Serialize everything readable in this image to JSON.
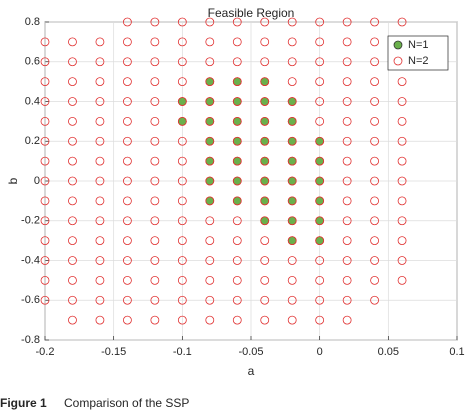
{
  "chart_data": {
    "type": "scatter",
    "title": "Feasible Region",
    "x_label": "a",
    "y_label": "b",
    "xlim": [
      -0.2,
      0.1
    ],
    "xticks": [
      -0.2,
      -0.15,
      -0.1,
      -0.05,
      0,
      0.05,
      0.1
    ],
    "ylim": [
      -0.8,
      0.8
    ],
    "yticks": [
      -0.8,
      -0.6,
      -0.4,
      -0.2,
      0,
      0.2,
      0.4,
      0.6,
      0.8
    ],
    "grid": true,
    "legend": "upper right",
    "series": [
      {
        "name": "N=2",
        "color": "#e03030",
        "marker": "open",
        "x": [
          -0.2,
          -0.2,
          -0.2,
          -0.2,
          -0.2,
          -0.2,
          -0.2,
          -0.2,
          -0.2,
          -0.2,
          -0.2,
          -0.2,
          -0.2,
          -0.2,
          -0.18,
          -0.18,
          -0.18,
          -0.18,
          -0.18,
          -0.18,
          -0.18,
          -0.18,
          -0.18,
          -0.18,
          -0.18,
          -0.18,
          -0.18,
          -0.18,
          -0.18,
          -0.16,
          -0.16,
          -0.16,
          -0.16,
          -0.16,
          -0.16,
          -0.16,
          -0.16,
          -0.16,
          -0.16,
          -0.16,
          -0.16,
          -0.16,
          -0.16,
          -0.16,
          -0.14,
          -0.14,
          -0.14,
          -0.14,
          -0.14,
          -0.14,
          -0.14,
          -0.14,
          -0.14,
          -0.14,
          -0.14,
          -0.14,
          -0.14,
          -0.14,
          -0.14,
          -0.14,
          -0.12,
          -0.12,
          -0.12,
          -0.12,
          -0.12,
          -0.12,
          -0.12,
          -0.12,
          -0.12,
          -0.12,
          -0.12,
          -0.12,
          -0.12,
          -0.12,
          -0.12,
          -0.12,
          -0.1,
          -0.1,
          -0.1,
          -0.1,
          -0.1,
          -0.1,
          -0.1,
          -0.1,
          -0.1,
          -0.1,
          -0.1,
          -0.1,
          -0.1,
          -0.1,
          -0.1,
          -0.1,
          -0.08,
          -0.08,
          -0.08,
          -0.08,
          -0.08,
          -0.08,
          -0.08,
          -0.08,
          -0.08,
          -0.08,
          -0.08,
          -0.08,
          -0.08,
          -0.08,
          -0.08,
          -0.08,
          -0.06,
          -0.06,
          -0.06,
          -0.06,
          -0.06,
          -0.06,
          -0.06,
          -0.06,
          -0.06,
          -0.06,
          -0.06,
          -0.06,
          -0.06,
          -0.06,
          -0.06,
          -0.06,
          -0.04,
          -0.04,
          -0.04,
          -0.04,
          -0.04,
          -0.04,
          -0.04,
          -0.04,
          -0.04,
          -0.04,
          -0.04,
          -0.04,
          -0.04,
          -0.04,
          -0.04,
          -0.04,
          -0.02,
          -0.02,
          -0.02,
          -0.02,
          -0.02,
          -0.02,
          -0.02,
          -0.02,
          -0.02,
          -0.02,
          -0.02,
          -0.02,
          -0.02,
          -0.02,
          -0.02,
          -0.02,
          0,
          0,
          0,
          0,
          0,
          0,
          0,
          0,
          0,
          0,
          0,
          0,
          0,
          0,
          0,
          0,
          0.02,
          0.02,
          0.02,
          0.02,
          0.02,
          0.02,
          0.02,
          0.02,
          0.02,
          0.02,
          0.02,
          0.02,
          0.02,
          0.02,
          0.02,
          0.02,
          0.04,
          0.04,
          0.04,
          0.04,
          0.04,
          0.04,
          0.04,
          0.04,
          0.04,
          0.04,
          0.04,
          0.04,
          0.04,
          0.04,
          0.04,
          0.06,
          0.06,
          0.06,
          0.06,
          0.06,
          0.06,
          0.06,
          0.06,
          0.06,
          0.06,
          0.06,
          0.06,
          0.06,
          0.06
        ],
        "values": [
          0.7,
          0.6,
          0.5,
          0.4,
          0.3,
          0.2,
          0.1,
          0,
          -0.1,
          -0.2,
          -0.3,
          -0.4,
          -0.5,
          -0.6,
          0.7,
          0.6,
          0.5,
          0.4,
          0.3,
          0.2,
          0.1,
          0,
          -0.1,
          -0.2,
          -0.3,
          -0.4,
          -0.5,
          -0.6,
          -0.7,
          0.7,
          0.6,
          0.5,
          0.4,
          0.3,
          0.2,
          0.1,
          0,
          -0.1,
          -0.2,
          -0.3,
          -0.4,
          -0.5,
          -0.6,
          -0.7,
          0.8,
          0.7,
          0.6,
          0.5,
          0.4,
          0.3,
          0.2,
          0.1,
          0,
          -0.1,
          -0.2,
          -0.3,
          -0.4,
          -0.5,
          -0.6,
          -0.7,
          0.8,
          0.7,
          0.6,
          0.5,
          0.4,
          0.3,
          0.2,
          0.1,
          0,
          -0.1,
          -0.2,
          -0.3,
          -0.4,
          -0.5,
          -0.6,
          -0.7,
          0.8,
          0.7,
          0.6,
          0.5,
          0.4,
          0.3,
          0.2,
          0.1,
          0,
          -0.1,
          -0.2,
          -0.3,
          -0.4,
          -0.5,
          -0.6,
          -0.7,
          0.8,
          0.7,
          0.6,
          0.5,
          0.4,
          0.3,
          0.2,
          0.1,
          0,
          -0.1,
          -0.2,
          -0.3,
          -0.4,
          -0.5,
          -0.6,
          -0.7,
          0.8,
          0.7,
          0.6,
          0.5,
          0.4,
          0.3,
          0.2,
          0.1,
          0,
          -0.1,
          -0.2,
          -0.3,
          -0.4,
          -0.5,
          -0.6,
          -0.7,
          0.8,
          0.7,
          0.6,
          0.5,
          0.4,
          0.3,
          0.2,
          0.1,
          0,
          -0.1,
          -0.2,
          -0.3,
          -0.4,
          -0.5,
          -0.6,
          -0.7,
          0.8,
          0.7,
          0.6,
          0.5,
          0.4,
          0.3,
          0.2,
          0.1,
          0,
          -0.1,
          -0.2,
          -0.3,
          -0.4,
          -0.5,
          -0.6,
          -0.7,
          0.8,
          0.7,
          0.6,
          0.5,
          0.4,
          0.3,
          0.2,
          0.1,
          0,
          -0.1,
          -0.2,
          -0.3,
          -0.4,
          -0.5,
          -0.6,
          -0.7,
          0.8,
          0.7,
          0.6,
          0.5,
          0.4,
          0.3,
          0.2,
          0.1,
          0,
          -0.1,
          -0.2,
          -0.3,
          -0.4,
          -0.5,
          -0.6,
          -0.7,
          0.8,
          0.7,
          0.6,
          0.5,
          0.4,
          0.3,
          0.2,
          0.1,
          0,
          -0.1,
          -0.2,
          -0.3,
          -0.4,
          -0.5,
          -0.6,
          0.8,
          0.7,
          0.6,
          0.5,
          0.4,
          0.3,
          0.2,
          0.1,
          0,
          -0.1,
          -0.2,
          -0.3,
          -0.4,
          -0.5
        ]
      },
      {
        "name": "N=1",
        "color": "#6ab04c",
        "marker": "filled",
        "x": [
          -0.1,
          -0.1,
          -0.08,
          -0.08,
          -0.08,
          -0.08,
          -0.08,
          -0.08,
          -0.08,
          -0.06,
          -0.06,
          -0.06,
          -0.06,
          -0.06,
          -0.06,
          -0.06,
          -0.04,
          -0.04,
          -0.04,
          -0.04,
          -0.04,
          -0.04,
          -0.04,
          -0.04,
          -0.02,
          -0.02,
          -0.02,
          -0.02,
          -0.02,
          -0.02,
          -0.02,
          -0.02,
          0,
          0,
          0,
          0,
          0,
          0
        ],
        "values": [
          0.4,
          0.3,
          0.5,
          0.4,
          0.3,
          0.2,
          0.1,
          0,
          -0.1,
          0.5,
          0.4,
          0.3,
          0.2,
          0.1,
          0,
          -0.1,
          0.5,
          0.4,
          0.3,
          0.2,
          0.1,
          0,
          -0.1,
          -0.2,
          0.4,
          0.3,
          0.2,
          0.1,
          0,
          -0.1,
          -0.2,
          -0.3,
          0.2,
          0.1,
          0,
          -0.1,
          -0.2,
          -0.3
        ]
      }
    ]
  },
  "caption": {
    "label": "Figure 1",
    "text": "Comparison of the SSP"
  }
}
